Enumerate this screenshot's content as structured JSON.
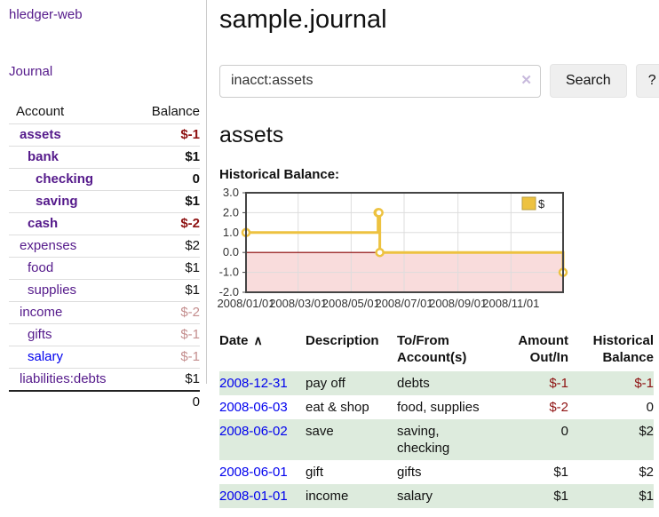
{
  "sidebar": {
    "app_title": "hledger-web",
    "journal_label": "Journal",
    "accounts_table": {
      "headers": [
        "Account",
        "Balance"
      ],
      "rows": [
        {
          "account": "assets",
          "depth": 1,
          "account_style": "bold-purple",
          "balance": "$-1",
          "balance_style": "bold-neg"
        },
        {
          "account": "bank",
          "depth": 2,
          "account_style": "bold-purple",
          "balance": "$1",
          "balance_style": "bold"
        },
        {
          "account": "checking",
          "depth": 3,
          "account_style": "bold-purple",
          "balance": "0",
          "balance_style": "bold"
        },
        {
          "account": "saving",
          "depth": 3,
          "account_style": "bold-purple",
          "balance": "$1",
          "balance_style": "bold"
        },
        {
          "account": "cash",
          "depth": 2,
          "account_style": "bold-purple",
          "balance": "$-2",
          "balance_style": "bold-neg"
        },
        {
          "account": "expenses",
          "depth": 1,
          "account_style": "purple",
          "balance": "$2",
          "balance_style": "plain"
        },
        {
          "account": "food",
          "depth": 2,
          "account_style": "purple",
          "balance": "$1",
          "balance_style": "plain"
        },
        {
          "account": "supplies",
          "depth": 2,
          "account_style": "purple",
          "balance": "$1",
          "balance_style": "plain"
        },
        {
          "account": "income",
          "depth": 1,
          "account_style": "purple",
          "balance": "$-2",
          "balance_style": "dim-neg"
        },
        {
          "account": "gifts",
          "depth": 2,
          "account_style": "purple",
          "balance": "$-1",
          "balance_style": "dim-neg"
        },
        {
          "account": "salary",
          "depth": 2,
          "account_style": "blue",
          "balance": "$-1",
          "balance_style": "dim-neg"
        },
        {
          "account": "liabilities:debts",
          "depth": 1,
          "account_style": "purple",
          "balance": "$1",
          "balance_style": "plain"
        }
      ],
      "total": "0"
    }
  },
  "main": {
    "title": "sample.journal",
    "search": {
      "value": "inacct:assets",
      "clear_glyph": "✕",
      "button_label": "Search",
      "help_label": "?"
    },
    "account_heading": "assets",
    "chart_data": {
      "type": "line",
      "step": true,
      "title": "Historical Balance:",
      "x_range": [
        "2008-01-01",
        "2008-12-31"
      ],
      "ylim": [
        -2,
        3
      ],
      "yticks": [
        "3.0",
        "2.0",
        "1.0",
        "0.0",
        "-1.0",
        "-2.0"
      ],
      "xtick_labels": [
        "2008/01/01",
        "2008/03/01",
        "2008/05/01",
        "2008/07/01",
        "2008/09/01",
        "2008/11/01"
      ],
      "series": [
        {
          "name": "$",
          "color": "#EDC240",
          "points": [
            {
              "date": "2008-01-01",
              "value": 1
            },
            {
              "date": "2008-06-01",
              "value": 2
            },
            {
              "date": "2008-06-02",
              "value": 2
            },
            {
              "date": "2008-06-03",
              "value": 0
            },
            {
              "date": "2008-12-31",
              "value": -1
            }
          ]
        }
      ],
      "legend_position": "top-right",
      "grid": true,
      "negative_region_color": "#F9DCDC",
      "zero_line_color": "#8B0000",
      "border_color": "#444444",
      "grid_color": "#DDDDDD"
    },
    "register_table": {
      "headers": [
        {
          "label": "Date",
          "sort_icon": "caret-up-icon",
          "sort_glyph": "∧"
        },
        {
          "label": "Description"
        },
        {
          "label": "To/From Account(s)"
        },
        {
          "label": "Amount Out/In"
        },
        {
          "label": "Historical Balance"
        }
      ],
      "rows": [
        {
          "date": "2008-12-31",
          "description": "pay off",
          "accounts": "debts",
          "amount": "$-1",
          "amount_style": "neg",
          "balance": "$-1",
          "balance_style": "neg",
          "shaded": true
        },
        {
          "date": "2008-06-03",
          "description": "eat & shop",
          "accounts": "food, supplies",
          "amount": "$-2",
          "amount_style": "neg",
          "balance": "0",
          "balance_style": "plain",
          "shaded": false
        },
        {
          "date": "2008-06-02",
          "description": "save",
          "accounts": "saving, checking",
          "amount": "0",
          "amount_style": "plain",
          "balance": "$2",
          "balance_style": "plain",
          "shaded": true
        },
        {
          "date": "2008-06-01",
          "description": "gift",
          "accounts": "gifts",
          "amount": "$1",
          "amount_style": "plain",
          "balance": "$2",
          "balance_style": "plain",
          "shaded": false
        },
        {
          "date": "2008-01-01",
          "description": "income",
          "accounts": "salary",
          "amount": "$1",
          "amount_style": "plain",
          "balance": "$1",
          "balance_style": "plain",
          "shaded": true
        }
      ]
    }
  },
  "colors": {
    "link_purple": "#551A8B",
    "link_blue": "#0000EE",
    "negative_strong": "#8E1212",
    "negative_dim": "#C48E8E",
    "row_shaded_green": "#DDEBDD",
    "series_gold": "#EDC240"
  }
}
